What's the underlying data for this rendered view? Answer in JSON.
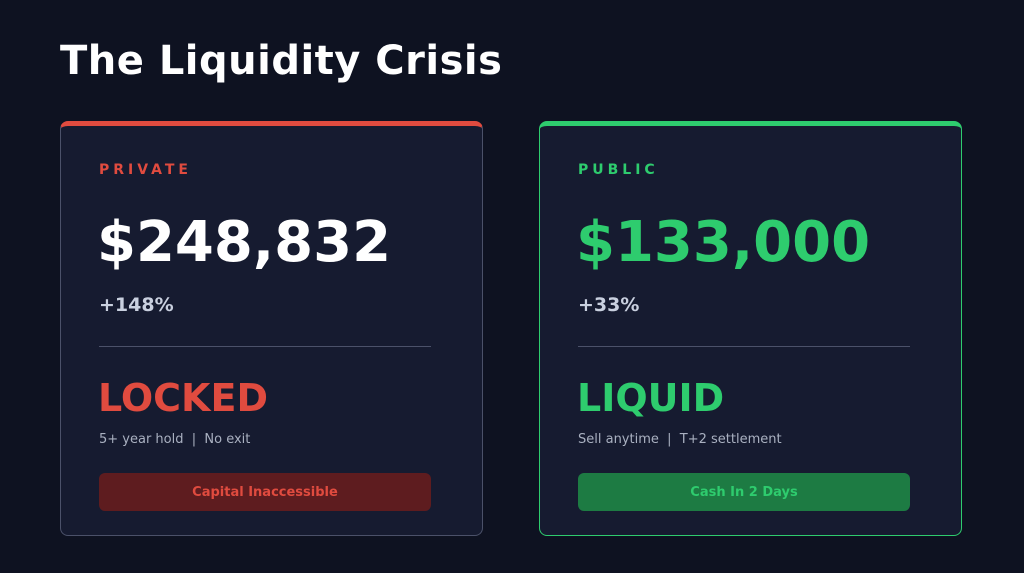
{
  "title": "The Liquidity Crisis",
  "cards": [
    {
      "label": "PRIVATE",
      "amount": "$248,832",
      "change": "+148%",
      "status": "LOCKED",
      "details": "5+ year hold  |  No exit",
      "badge": "Capital Inaccessible"
    },
    {
      "label": "PUBLIC",
      "amount": "$133,000",
      "change": "+33%",
      "status": "LIQUID",
      "details": "Sell anytime  |  T+2 settlement",
      "badge": "Cash In 2 Days"
    }
  ]
}
